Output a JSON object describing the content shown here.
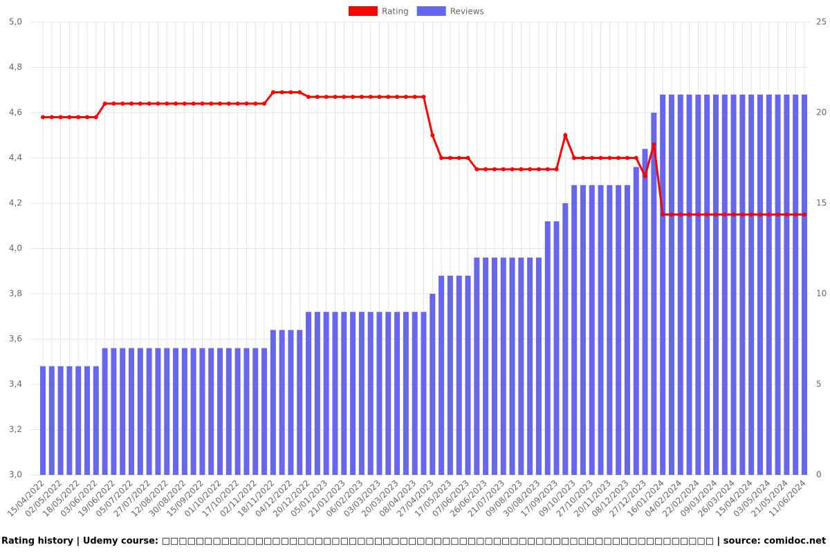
{
  "chart_data": {
    "type": "bar-line",
    "caption": "Rating history | Udemy course: □□□□□□□□□□□□□□□□□□□□□□□□□□□□□□□□□□□□□□□□□□□□□□□□□□□□□□□□□□□□□□□□□ | source: comidoc.net",
    "categories": [
      "15/04/2022",
      null,
      "02/05/2022",
      null,
      "18/05/2022",
      null,
      "03/06/2022",
      null,
      "19/06/2022",
      null,
      "05/07/2022",
      null,
      "27/07/2022",
      null,
      "12/08/2022",
      null,
      "30/08/2022",
      null,
      "15/09/2022",
      null,
      "01/10/2022",
      null,
      "17/10/2022",
      null,
      "02/11/2022",
      null,
      "18/11/2022",
      null,
      "04/12/2022",
      null,
      "20/12/2022",
      null,
      "05/01/2023",
      null,
      "21/01/2023",
      null,
      "06/02/2023",
      null,
      "03/03/2023",
      null,
      "20/03/2023",
      null,
      "08/04/2023",
      null,
      "27/04/2023",
      null,
      "17/05/2023",
      null,
      "07/06/2023",
      null,
      "26/06/2023",
      null,
      "21/07/2023",
      null,
      "09/08/2023",
      null,
      "30/08/2023",
      null,
      "17/09/2023",
      null,
      "09/10/2023",
      null,
      "27/10/2023",
      null,
      "20/11/2023",
      null,
      "08/12/2023",
      null,
      "27/12/2023",
      null,
      "16/01/2024",
      null,
      "04/02/2024",
      null,
      "22/02/2024",
      null,
      "09/03/2024",
      null,
      "26/03/2024",
      null,
      "15/04/2024",
      null,
      "03/05/2024",
      null,
      "21/05/2024",
      null,
      "11/06/2024"
    ],
    "series": [
      {
        "name": "Rating",
        "type": "line",
        "color": "#ff0000",
        "axis": "y",
        "values": [
          4.58,
          4.58,
          4.58,
          4.58,
          4.58,
          4.58,
          4.58,
          4.64,
          4.64,
          4.64,
          4.64,
          4.64,
          4.64,
          4.64,
          4.64,
          4.64,
          4.64,
          4.64,
          4.64,
          4.64,
          4.64,
          4.64,
          4.64,
          4.64,
          4.64,
          4.64,
          4.69,
          4.69,
          4.69,
          4.69,
          4.67,
          4.67,
          4.67,
          4.67,
          4.67,
          4.67,
          4.67,
          4.67,
          4.67,
          4.67,
          4.67,
          4.67,
          4.67,
          4.67,
          4.5,
          4.4,
          4.4,
          4.4,
          4.4,
          4.35,
          4.35,
          4.35,
          4.35,
          4.35,
          4.35,
          4.35,
          4.35,
          4.35,
          4.35,
          4.5,
          4.4,
          4.4,
          4.4,
          4.4,
          4.4,
          4.4,
          4.4,
          4.4,
          4.32,
          4.46,
          4.15,
          4.15,
          4.15,
          4.15,
          4.15,
          4.15,
          4.15,
          4.15,
          4.15,
          4.15,
          4.15,
          4.15,
          4.15,
          4.15,
          4.15,
          4.15,
          4.15
        ]
      },
      {
        "name": "Reviews",
        "type": "bar",
        "color": "#6666ee",
        "axis": "y2",
        "values": [
          6,
          6,
          6,
          6,
          6,
          6,
          6,
          7,
          7,
          7,
          7,
          7,
          7,
          7,
          7,
          7,
          7,
          7,
          7,
          7,
          7,
          7,
          7,
          7,
          7,
          7,
          8,
          8,
          8,
          8,
          9,
          9,
          9,
          9,
          9,
          9,
          9,
          9,
          9,
          9,
          9,
          9,
          9,
          9,
          10,
          11,
          11,
          11,
          11,
          12,
          12,
          12,
          12,
          12,
          12,
          12,
          12,
          14,
          14,
          15,
          16,
          16,
          16,
          16,
          16,
          16,
          16,
          17,
          18,
          20,
          21,
          21,
          21,
          21,
          21,
          21,
          21,
          21,
          21,
          21,
          21,
          21,
          21,
          21,
          21,
          21,
          21
        ]
      }
    ],
    "ylim": [
      3,
      5
    ],
    "yticks": [
      {
        "value": 3,
        "label": "3,0"
      },
      {
        "value": 3.2,
        "label": "3,2"
      },
      {
        "value": 3.4,
        "label": "3,4"
      },
      {
        "value": 3.6,
        "label": "3,6"
      },
      {
        "value": 3.8,
        "label": "3,8"
      },
      {
        "value": 4,
        "label": "4,0"
      },
      {
        "value": 4.2,
        "label": "4,2"
      },
      {
        "value": 4.4,
        "label": "4,4"
      },
      {
        "value": 4.6,
        "label": "4,6"
      },
      {
        "value": 4.8,
        "label": "4,8"
      },
      {
        "value": 5,
        "label": "5,0"
      }
    ],
    "y2lim": [
      0,
      25
    ],
    "y2ticks": [
      0,
      5,
      10,
      15,
      20,
      25
    ],
    "grid": true,
    "legend": "top"
  }
}
